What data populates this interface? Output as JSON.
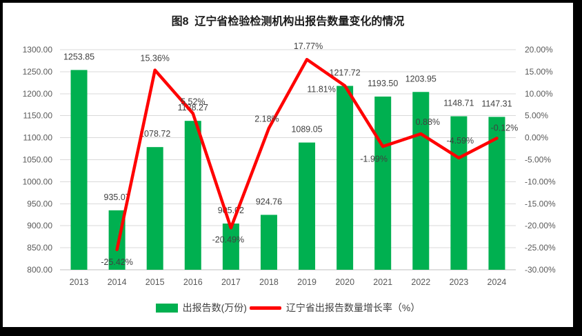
{
  "title": "图8  辽宁省检验检测机构出报告数量变化的情况",
  "chart_data": {
    "type": "combo-bar-line",
    "categories": [
      "2013",
      "2014",
      "2015",
      "2016",
      "2017",
      "2018",
      "2019",
      "2020",
      "2021",
      "2022",
      "2023",
      "2024"
    ],
    "series": [
      {
        "name": "出报告数(万份)",
        "type": "bar",
        "color": "#00B050",
        "axis": "left",
        "values": [
          1253.85,
          935.07,
          1078.72,
          1138.27,
          905.02,
          924.76,
          1089.05,
          1217.72,
          1193.5,
          1203.95,
          1148.71,
          1147.31
        ]
      },
      {
        "name": "辽宁省出报告数量增长率（%）",
        "type": "line",
        "color": "#FF0000",
        "axis": "right",
        "values": [
          null,
          -25.42,
          15.36,
          5.52,
          -20.49,
          2.18,
          17.77,
          11.81,
          -1.99,
          0.88,
          -4.59,
          -0.12
        ]
      }
    ],
    "left_axis": {
      "min": 800,
      "max": 1300,
      "step": 50,
      "decimals": 2
    },
    "right_axis": {
      "min": -30,
      "max": 20,
      "step": 5,
      "decimals": 2,
      "suffix": "%"
    },
    "grid": true,
    "data_labels": true,
    "legend_position": "bottom",
    "growth_label_offsets": [
      null,
      [
        0,
        22
      ],
      [
        0,
        -13
      ],
      [
        0,
        -13
      ],
      [
        -4,
        21
      ],
      [
        -3,
        -9
      ],
      [
        2,
        -15
      ],
      [
        -34,
        9
      ],
      [
        -13,
        22
      ],
      [
        10,
        -13
      ],
      [
        2,
        -21
      ],
      [
        11,
        -11
      ]
    ]
  },
  "colors": {
    "bar": "#00B050",
    "line": "#FF0000",
    "grid": "#D9D9D9",
    "axis_line": "#BFBFBF",
    "axis_text": "#595959",
    "label_text": "#404040",
    "title_text": "#1a1a1a",
    "frame_border": "#000000",
    "background": "#FFFFFF"
  }
}
